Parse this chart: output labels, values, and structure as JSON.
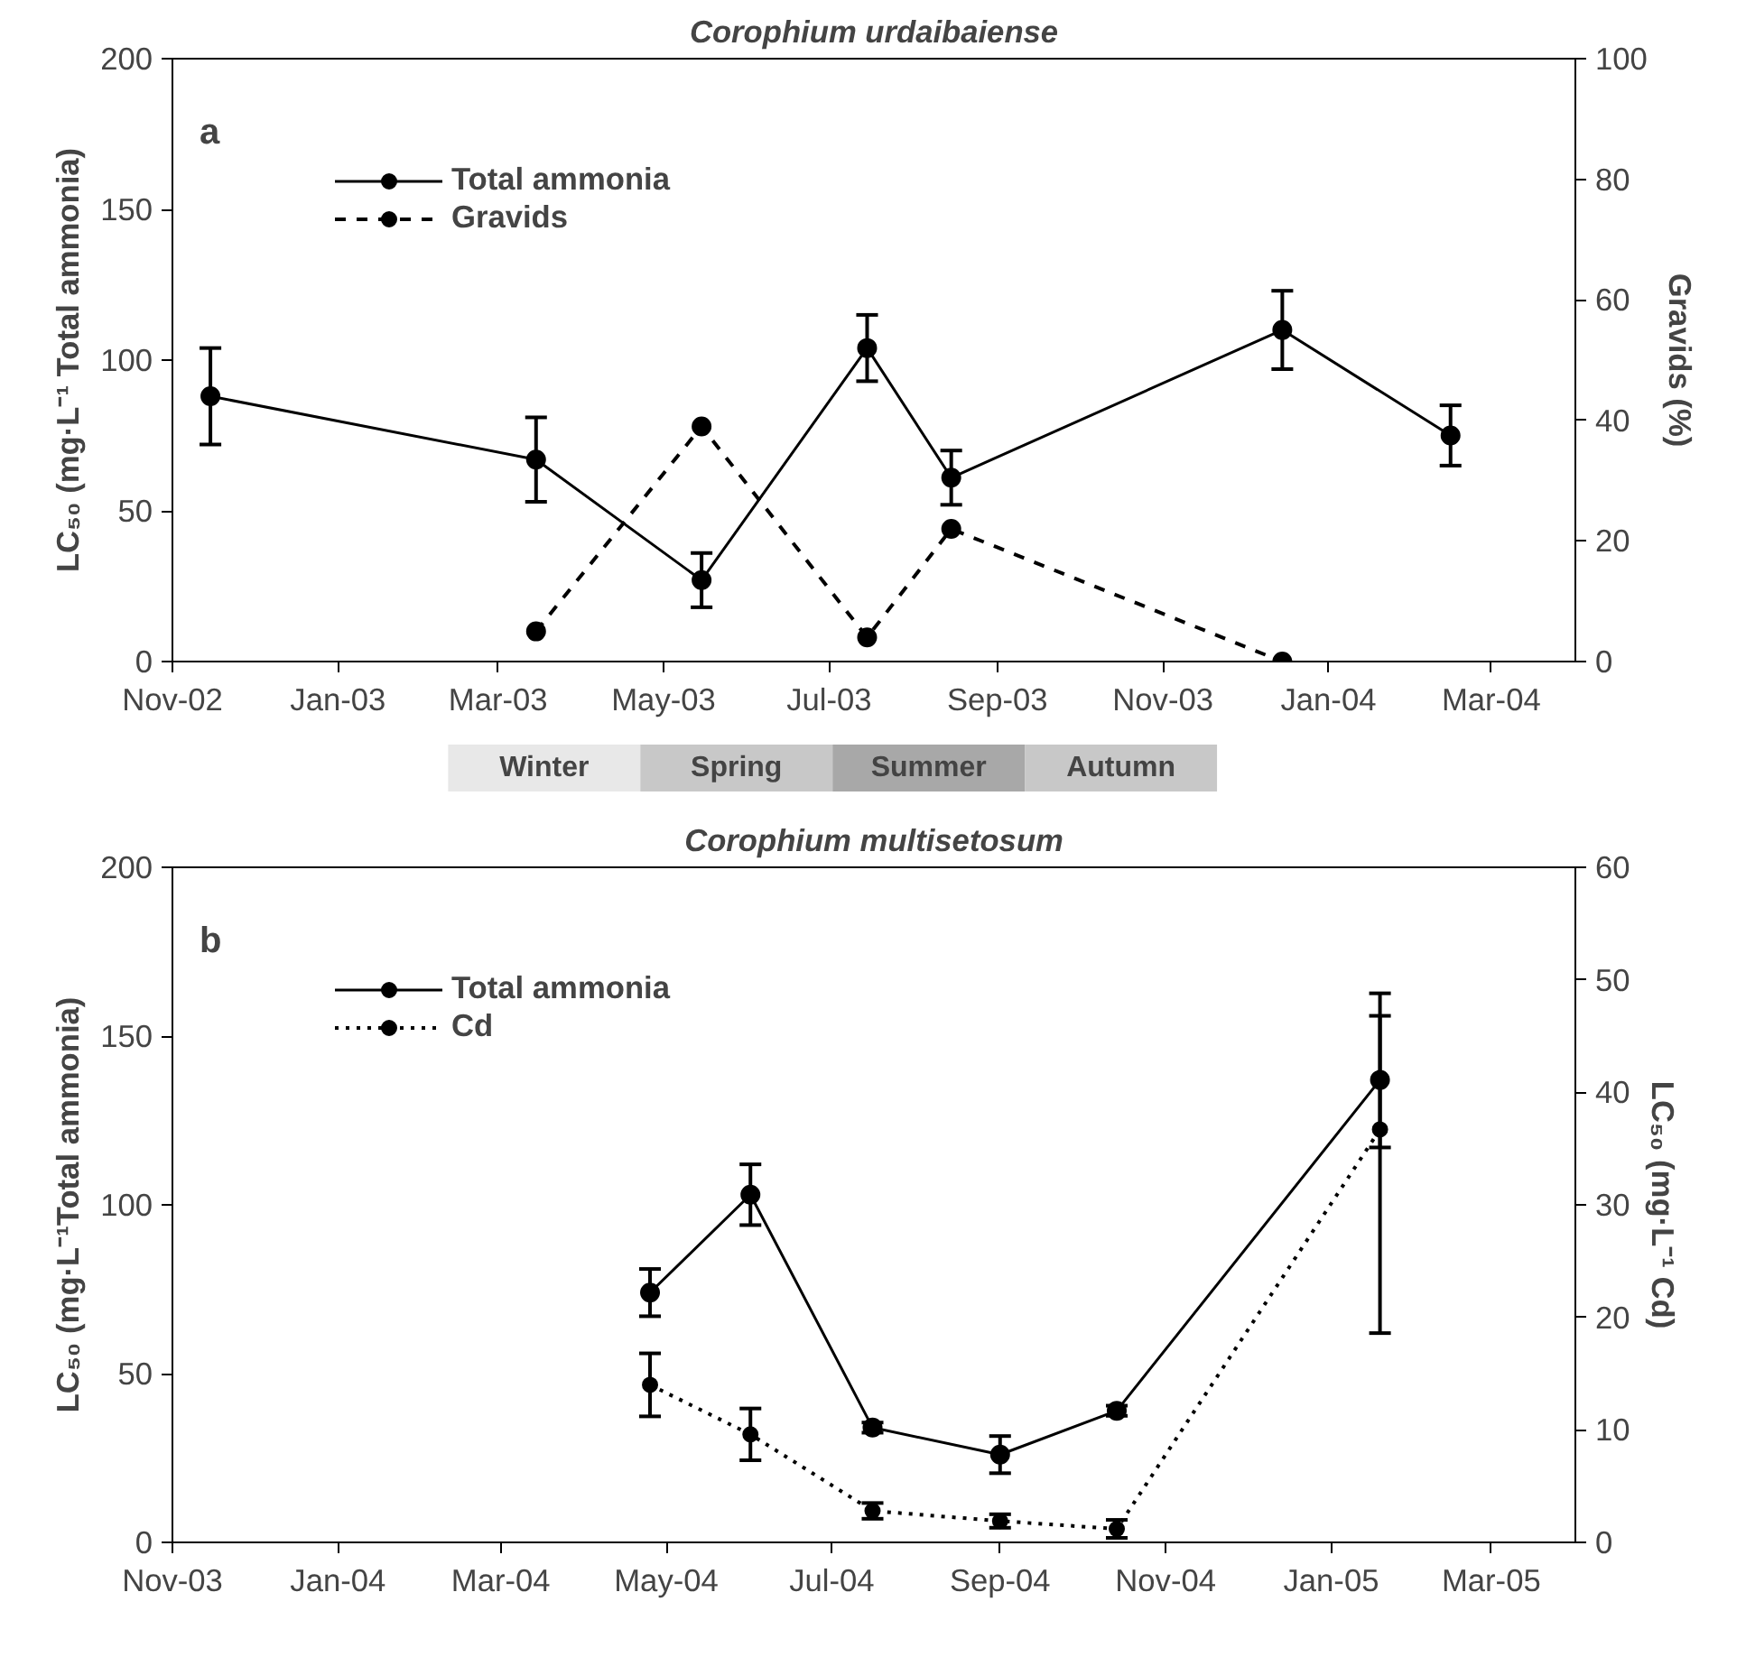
{
  "chart_data": [
    {
      "type": "line",
      "title": "Corophium urdaibaiense",
      "ylabel": "LC₅₀ (mg·L⁻¹ Total ammonia)",
      "y2label": "Gravids (%)",
      "annotations": [
        "a",
        "Winter",
        "Spring",
        "Summer",
        "Autumn"
      ],
      "xlim": [
        "2002-11-01",
        "2004-04-01"
      ],
      "xticks": [
        {
          "value": "2002-11-01",
          "label": "Nov-02"
        },
        {
          "value": "2003-01-01",
          "label": "Jan-03"
        },
        {
          "value": "2003-03-01",
          "label": "Mar-03"
        },
        {
          "value": "2003-05-01",
          "label": "May-03"
        },
        {
          "value": "2003-07-01",
          "label": "Jul-03"
        },
        {
          "value": "2003-09-01",
          "label": "Sep-03"
        },
        {
          "value": "2003-11-01",
          "label": "Nov-03"
        },
        {
          "value": "2004-01-01",
          "label": "Jan-04"
        },
        {
          "value": "2004-03-01",
          "label": "Mar-04"
        }
      ],
      "ylim": [
        0,
        200
      ],
      "yticks": [
        0,
        50,
        100,
        150,
        200
      ],
      "y2lim": [
        0,
        100
      ],
      "y2ticks": [
        0,
        20,
        40,
        60,
        80,
        100
      ],
      "grid": false,
      "legend": "top left",
      "marker": "circle",
      "series": [
        {
          "name": "Total ammonia",
          "color": "#000000",
          "line_style": "solid",
          "x": [
            "2002-11-15",
            "2003-03-15",
            "2003-05-15",
            "2003-07-15",
            "2003-08-15",
            "2003-12-15",
            "2004-02-15"
          ],
          "values": [
            88,
            67,
            27,
            104,
            61,
            110,
            75
          ],
          "errors": [
            16,
            14,
            9,
            11,
            9,
            13,
            10
          ]
        },
        {
          "name": "Gravids",
          "color": "#000000",
          "line_style": "dashed",
          "axis": "y2",
          "x": [
            "2003-03-15",
            "2003-05-15",
            "2003-07-15",
            "2003-08-15",
            "2003-12-15"
          ],
          "values": [
            5,
            39,
            4,
            22,
            0
          ]
        }
      ]
    },
    {
      "type": "line",
      "title": "Corophium multisetosum",
      "ylabel": "LC₅₀ (mg·L⁻¹Total ammonia)",
      "y2label": "LC₅₀ (mg·L⁻¹ Cd)",
      "annotations": [
        "b"
      ],
      "xlim": [
        "2003-11-01",
        "2005-04-01"
      ],
      "xticks": [
        {
          "value": "2003-11-01",
          "label": "Nov-03"
        },
        {
          "value": "2004-01-01",
          "label": "Jan-04"
        },
        {
          "value": "2004-03-01",
          "label": "Mar-04"
        },
        {
          "value": "2004-05-01",
          "label": "May-04"
        },
        {
          "value": "2004-07-01",
          "label": "Jul-04"
        },
        {
          "value": "2004-09-01",
          "label": "Sep-04"
        },
        {
          "value": "2004-11-01",
          "label": "Nov-04"
        },
        {
          "value": "2005-01-01",
          "label": "Jan-05"
        },
        {
          "value": "2005-03-01",
          "label": "Mar-05"
        }
      ],
      "ylim": [
        0,
        200
      ],
      "yticks": [
        0,
        50,
        100,
        150,
        200
      ],
      "y2lim": [
        0,
        60
      ],
      "y2ticks": [
        0,
        10,
        20,
        30,
        40,
        50,
        60
      ],
      "grid": false,
      "legend": "top left",
      "marker": "circle",
      "series": [
        {
          "name": "Total ammonia",
          "color": "#000000",
          "line_style": "solid",
          "x": [
            "2004-04-25",
            "2004-06-01",
            "2004-07-16",
            "2004-09-01",
            "2004-10-14",
            "2005-01-19"
          ],
          "values": [
            74,
            103,
            34,
            26,
            39,
            137
          ],
          "errors": [
            7,
            9,
            1.5,
            5.5,
            1.5,
            [
              117,
              156
            ]
          ]
        },
        {
          "name": "Cd",
          "color": "#000000",
          "line_style": "dotted",
          "axis": "y2",
          "x": [
            "2004-04-25",
            "2004-06-01",
            "2004-07-16",
            "2004-09-01",
            "2004-10-14",
            "2005-01-19"
          ],
          "values": [
            14.0,
            9.6,
            2.8,
            1.9,
            1.2,
            36.7
          ],
          "errors": [
            2.8,
            2.3,
            0.7,
            0.6,
            0.8,
            [
              18.6,
              48.8
            ]
          ]
        }
      ]
    }
  ]
}
